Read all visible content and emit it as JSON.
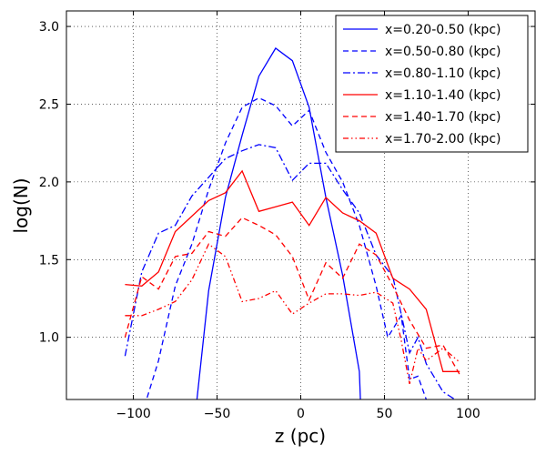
{
  "chart_data": {
    "type": "line",
    "xlabel": "z (pc)",
    "ylabel": "log(N)",
    "xlim": [
      -140,
      140
    ],
    "ylim": [
      0.6,
      3.1
    ],
    "xticks": [
      -100,
      -50,
      0,
      50,
      100
    ],
    "xtick_labels": [
      "−100",
      "−50",
      "0",
      "50",
      "100"
    ],
    "yticks": [
      1.0,
      1.5,
      2.0,
      2.5,
      3.0
    ],
    "ytick_labels": [
      "1.0",
      "1.5",
      "2.0",
      "2.5",
      "3.0"
    ],
    "grid": true,
    "legend_position": "top-right",
    "series": [
      {
        "name": "x=0.20-0.50 (kpc)",
        "color": "#0000ff",
        "dash": "solid",
        "points": [
          [
            -65,
            0.3
          ],
          [
            -55,
            1.3
          ],
          [
            -45,
            1.9
          ],
          [
            -35,
            2.3
          ],
          [
            -25,
            2.68
          ],
          [
            -15,
            2.86
          ],
          [
            -5,
            2.78
          ],
          [
            5,
            2.48
          ],
          [
            15,
            1.9
          ],
          [
            25,
            1.4
          ],
          [
            35,
            0.78
          ],
          [
            36,
            0.5
          ]
        ]
      },
      {
        "name": "x=0.50-0.80 (kpc)",
        "color": "#0000ff",
        "dash": "dashed",
        "points": [
          [
            -95,
            0.5
          ],
          [
            -85,
            0.85
          ],
          [
            -75,
            1.33
          ],
          [
            -65,
            1.6
          ],
          [
            -55,
            1.95
          ],
          [
            -45,
            2.25
          ],
          [
            -35,
            2.48
          ],
          [
            -25,
            2.54
          ],
          [
            -15,
            2.49
          ],
          [
            -5,
            2.36
          ],
          [
            5,
            2.46
          ],
          [
            15,
            2.19
          ],
          [
            25,
            2.0
          ],
          [
            35,
            1.72
          ],
          [
            45,
            1.33
          ],
          [
            52,
            1.0
          ],
          [
            60,
            1.14
          ],
          [
            65,
            0.73
          ],
          [
            70,
            0.75
          ],
          [
            75,
            0.6
          ]
        ]
      },
      {
        "name": "x=0.80-1.10 (kpc)",
        "color": "#0000ff",
        "dash": "dashdot",
        "points": [
          [
            -105,
            0.88
          ],
          [
            -95,
            1.42
          ],
          [
            -85,
            1.67
          ],
          [
            -75,
            1.72
          ],
          [
            -65,
            1.91
          ],
          [
            -55,
            2.03
          ],
          [
            -45,
            2.15
          ],
          [
            -35,
            2.2
          ],
          [
            -25,
            2.24
          ],
          [
            -15,
            2.22
          ],
          [
            -5,
            2.01
          ],
          [
            5,
            2.12
          ],
          [
            15,
            2.12
          ],
          [
            25,
            1.95
          ],
          [
            35,
            1.8
          ],
          [
            45,
            1.53
          ],
          [
            55,
            1.39
          ],
          [
            60,
            1.15
          ],
          [
            65,
            0.9
          ],
          [
            70,
            1.0
          ],
          [
            75,
            0.83
          ],
          [
            85,
            0.65
          ],
          [
            95,
            0.58
          ]
        ]
      },
      {
        "name": "x=1.10-1.40 (kpc)",
        "color": "#ff0000",
        "dash": "solid",
        "points": [
          [
            -105,
            1.34
          ],
          [
            -95,
            1.33
          ],
          [
            -85,
            1.42
          ],
          [
            -75,
            1.68
          ],
          [
            -65,
            1.78
          ],
          [
            -55,
            1.88
          ],
          [
            -45,
            1.93
          ],
          [
            -35,
            2.07
          ],
          [
            -25,
            1.81
          ],
          [
            -15,
            1.84
          ],
          [
            -5,
            1.87
          ],
          [
            5,
            1.72
          ],
          [
            15,
            1.9
          ],
          [
            25,
            1.8
          ],
          [
            35,
            1.75
          ],
          [
            45,
            1.67
          ],
          [
            55,
            1.38
          ],
          [
            65,
            1.31
          ],
          [
            75,
            1.18
          ],
          [
            85,
            0.78
          ],
          [
            95,
            0.78
          ]
        ]
      },
      {
        "name": "x=1.40-1.70 (kpc)",
        "color": "#ff0000",
        "dash": "dashed",
        "points": [
          [
            -105,
            1.0
          ],
          [
            -95,
            1.39
          ],
          [
            -85,
            1.31
          ],
          [
            -75,
            1.52
          ],
          [
            -65,
            1.54
          ],
          [
            -55,
            1.68
          ],
          [
            -45,
            1.65
          ],
          [
            -35,
            1.77
          ],
          [
            -25,
            1.72
          ],
          [
            -15,
            1.66
          ],
          [
            -5,
            1.52
          ],
          [
            5,
            1.24
          ],
          [
            15,
            1.48
          ],
          [
            25,
            1.38
          ],
          [
            35,
            1.6
          ],
          [
            45,
            1.53
          ],
          [
            55,
            1.33
          ],
          [
            65,
            1.11
          ],
          [
            75,
            0.93
          ],
          [
            85,
            0.95
          ],
          [
            95,
            0.76
          ]
        ]
      },
      {
        "name": "x=1.70-2.00 (kpc)",
        "color": "#ff0000",
        "dash": "dashdotdot",
        "points": [
          [
            -105,
            1.14
          ],
          [
            -95,
            1.14
          ],
          [
            -85,
            1.18
          ],
          [
            -75,
            1.23
          ],
          [
            -65,
            1.37
          ],
          [
            -55,
            1.6
          ],
          [
            -45,
            1.52
          ],
          [
            -35,
            1.23
          ],
          [
            -25,
            1.25
          ],
          [
            -15,
            1.3
          ],
          [
            -5,
            1.15
          ],
          [
            5,
            1.22
          ],
          [
            15,
            1.28
          ],
          [
            25,
            1.28
          ],
          [
            35,
            1.27
          ],
          [
            45,
            1.29
          ],
          [
            55,
            1.22
          ],
          [
            60,
            0.98
          ],
          [
            65,
            0.7
          ],
          [
            70,
            0.93
          ],
          [
            75,
            0.85
          ],
          [
            85,
            0.93
          ],
          [
            95,
            0.84
          ]
        ]
      }
    ]
  }
}
